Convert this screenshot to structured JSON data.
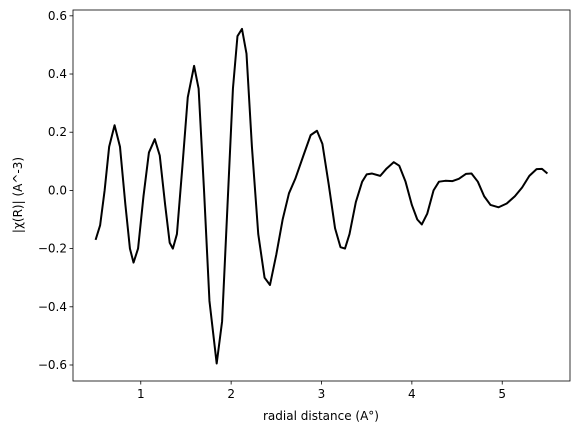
{
  "chart_data": {
    "type": "line",
    "xlabel": "radial distance (A°)",
    "ylabel": "|χ(R)| (A^-3)",
    "color": "#000000",
    "xlim": [
      0.25,
      5.75
    ],
    "ylim": [
      -0.655,
      0.62
    ],
    "xticks": [
      1,
      2,
      3,
      4,
      5
    ],
    "yticks": [
      {
        "value": -0.6,
        "label": "−0.6"
      },
      {
        "value": -0.4,
        "label": "−0.4"
      },
      {
        "value": -0.2,
        "label": "−0.2"
      },
      {
        "value": 0,
        "label": "0.0"
      },
      0.2,
      0.4,
      0.6
    ],
    "x": [
      0.5,
      0.55,
      0.6,
      0.65,
      0.71,
      0.77,
      0.83,
      0.88,
      0.92,
      0.97,
      1.03,
      1.09,
      1.155,
      1.21,
      1.27,
      1.32,
      1.355,
      1.4,
      1.46,
      1.52,
      1.59,
      1.64,
      1.7,
      1.76,
      1.84,
      1.9,
      1.96,
      2.02,
      2.07,
      2.12,
      2.17,
      2.23,
      2.3,
      2.37,
      2.43,
      2.5,
      2.57,
      2.64,
      2.71,
      2.8,
      2.88,
      2.95,
      3.01,
      3.08,
      3.15,
      3.21,
      3.26,
      3.31,
      3.38,
      3.45,
      3.5,
      3.56,
      3.65,
      3.72,
      3.8,
      3.86,
      3.93,
      4.0,
      4.06,
      4.11,
      4.17,
      4.24,
      4.3,
      4.37,
      4.45,
      4.52,
      4.6,
      4.66,
      4.73,
      4.8,
      4.87,
      4.96,
      5.05,
      5.14,
      5.22,
      5.3,
      5.38,
      5.44,
      5.5
    ],
    "values": [
      -0.17,
      -0.12,
      0.0,
      0.15,
      0.224,
      0.15,
      -0.05,
      -0.2,
      -0.248,
      -0.2,
      -0.02,
      0.13,
      0.176,
      0.12,
      -0.05,
      -0.18,
      -0.2,
      -0.15,
      0.08,
      0.32,
      0.428,
      0.35,
      0.0,
      -0.38,
      -0.595,
      -0.45,
      -0.05,
      0.35,
      0.53,
      0.555,
      0.47,
      0.15,
      -0.15,
      -0.3,
      -0.325,
      -0.22,
      -0.1,
      -0.01,
      0.04,
      0.12,
      0.19,
      0.205,
      0.16,
      0.02,
      -0.13,
      -0.195,
      -0.2,
      -0.15,
      -0.04,
      0.03,
      0.055,
      0.058,
      0.05,
      0.075,
      0.097,
      0.085,
      0.03,
      -0.05,
      -0.1,
      -0.117,
      -0.08,
      0.0,
      0.03,
      0.033,
      0.032,
      0.04,
      0.057,
      0.058,
      0.03,
      -0.02,
      -0.05,
      -0.058,
      -0.045,
      -0.02,
      0.01,
      0.05,
      0.073,
      0.074,
      0.058
    ]
  }
}
